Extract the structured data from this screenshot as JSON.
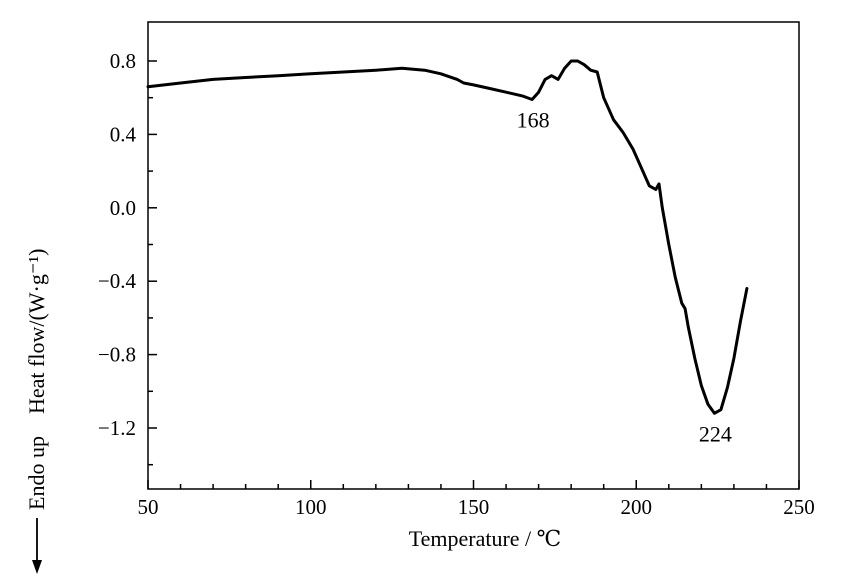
{
  "chart_data": {
    "type": "line",
    "xlabel": "Temperature / ℃",
    "ylabel": "Heat flow/(W·g⁻¹)",
    "ylabel_prefix": "Endo up",
    "xlim": [
      50,
      250
    ],
    "ylim": [
      -1.5,
      1.0
    ],
    "x_ticks": [
      "50",
      "100",
      "150",
      "200",
      "250"
    ],
    "y_ticks": [
      "0.8",
      "0.4",
      "0.0",
      "−0.4",
      "−0.8",
      "−1.2"
    ],
    "grid": false,
    "series": [
      {
        "x": [
          50,
          60,
          70,
          80,
          90,
          100,
          110,
          120,
          128,
          135,
          140,
          145,
          147,
          150,
          155,
          160,
          165,
          168,
          170,
          172,
          174,
          176,
          178,
          180,
          182,
          184,
          186,
          188,
          190,
          193,
          196,
          199,
          202,
          204,
          206,
          207,
          208,
          210,
          212,
          214,
          215,
          216,
          218,
          220,
          222,
          224,
          226,
          228,
          230,
          232,
          234
        ],
        "y": [
          0.66,
          0.68,
          0.7,
          0.71,
          0.72,
          0.73,
          0.74,
          0.75,
          0.76,
          0.75,
          0.73,
          0.7,
          0.68,
          0.67,
          0.65,
          0.63,
          0.61,
          0.59,
          0.63,
          0.7,
          0.72,
          0.7,
          0.76,
          0.8,
          0.8,
          0.78,
          0.75,
          0.74,
          0.6,
          0.48,
          0.41,
          0.32,
          0.2,
          0.12,
          0.1,
          0.13,
          0.0,
          -0.2,
          -0.38,
          -0.52,
          -0.55,
          -0.65,
          -0.82,
          -0.97,
          -1.07,
          -1.12,
          -1.1,
          -0.98,
          -0.82,
          -0.62,
          -0.44
        ]
      }
    ],
    "annotations": [
      {
        "text": "168",
        "x": 168,
        "y": 0.59
      },
      {
        "text": "224",
        "x": 224,
        "y": -1.12
      }
    ]
  }
}
